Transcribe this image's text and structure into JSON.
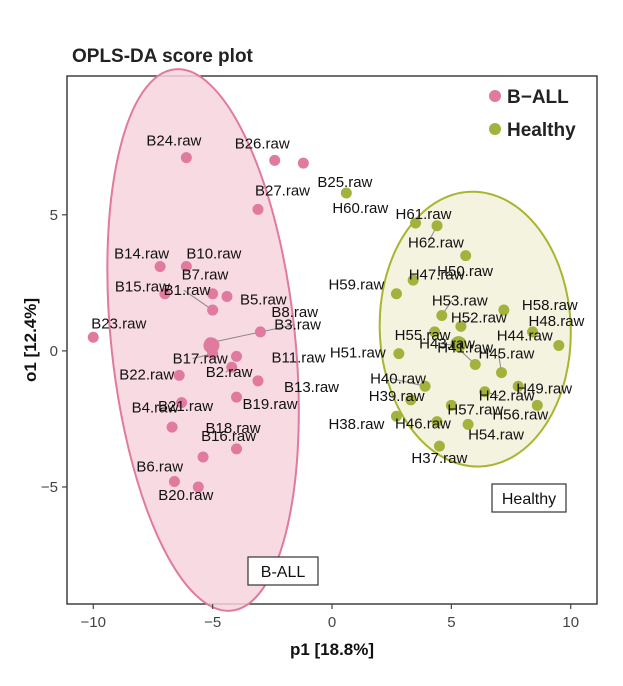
{
  "chart_data": {
    "type": "scatter",
    "title": "OPLS-DA score plot",
    "xlabel": "p1 [18.8%]",
    "ylabel": "o1 [12.4%]",
    "xlim": [
      -11.1,
      11.1
    ],
    "ylim": [
      -9.3,
      10.1
    ],
    "x_ticks": [
      -10,
      -5,
      0,
      5,
      10
    ],
    "y_ticks": [
      -5,
      0,
      5
    ],
    "x_tick_labels": [
      "−10",
      "−5",
      "0",
      "5",
      "10"
    ],
    "y_tick_labels": [
      "−5",
      "0",
      "5"
    ],
    "grid": false,
    "legend_position": "top-right",
    "series": [
      {
        "name": "B−ALL",
        "color": "#e07a9e",
        "ellipse_fill": "#f7d4de",
        "ellipse_stroke": "#e07a9e",
        "box_label": "B-ALL",
        "points": [
          {
            "label": "B24.raw",
            "x": -6.1,
            "y": 7.1
          },
          {
            "label": "B26.raw",
            "x": -2.4,
            "y": 7.0
          },
          {
            "label": "B25.raw",
            "x": -1.2,
            "y": 6.9
          },
          {
            "label": "B27.raw",
            "x": -3.1,
            "y": 5.2
          },
          {
            "label": "B14.raw",
            "x": -7.2,
            "y": 3.1
          },
          {
            "label": "B10.raw",
            "x": -6.1,
            "y": 3.1
          },
          {
            "label": "B7.raw",
            "x": -5.0,
            "y": 2.1
          },
          {
            "label": "B15.raw",
            "x": -7.0,
            "y": 2.1
          },
          {
            "label": "B5.raw",
            "x": -4.4,
            "y": 2.0
          },
          {
            "label": "B23.raw",
            "x": -10.0,
            "y": 0.5
          },
          {
            "label": "B1.raw",
            "x": -5.0,
            "y": 1.5
          },
          {
            "label": "B8.raw",
            "x": -3.0,
            "y": 0.7
          },
          {
            "label": "B3.raw",
            "x": -5.1,
            "y": 0.3
          },
          {
            "label": "B17.raw",
            "x": -5.0,
            "y": -0.1
          },
          {
            "label": "B11.raw",
            "x": -4.0,
            "y": -0.2
          },
          {
            "label": "B22.raw",
            "x": -6.4,
            "y": -0.9
          },
          {
            "label": "B2.raw",
            "x": -4.2,
            "y": -0.6
          },
          {
            "label": "B13.raw",
            "x": -3.1,
            "y": -1.1
          },
          {
            "label": "B4.raw",
            "x": -6.3,
            "y": -1.9
          },
          {
            "label": "B19.raw",
            "x": -4.0,
            "y": -1.7
          },
          {
            "label": "B18.raw",
            "x": -4.0,
            "y": -3.6
          },
          {
            "label": "B21.raw",
            "x": -6.7,
            "y": -2.8
          },
          {
            "label": "B6.raw",
            "x": -6.6,
            "y": -4.8
          },
          {
            "label": "B16.raw",
            "x": -5.4,
            "y": -3.9
          },
          {
            "label": "B20.raw",
            "x": -5.6,
            "y": -5.0
          }
        ]
      },
      {
        "name": "Healthy",
        "color": "#a3b23c",
        "ellipse_fill": "#f1f1da",
        "ellipse_stroke": "#a9b52e",
        "box_label": "Healthy",
        "points": [
          {
            "label": "H60.raw",
            "x": 0.6,
            "y": 5.8
          },
          {
            "label": "H61.raw",
            "x": 3.5,
            "y": 4.7
          },
          {
            "label": "H62.raw",
            "x": 4.4,
            "y": 4.6
          },
          {
            "label": "H47.raw",
            "x": 5.6,
            "y": 3.5
          },
          {
            "label": "H50.raw",
            "x": 3.4,
            "y": 2.6
          },
          {
            "label": "H59.raw",
            "x": 2.7,
            "y": 2.1
          },
          {
            "label": "H53.raw",
            "x": 4.6,
            "y": 1.3
          },
          {
            "label": "H58.raw",
            "x": 7.2,
            "y": 1.5
          },
          {
            "label": "H52.raw",
            "x": 5.4,
            "y": 0.9
          },
          {
            "label": "H55.raw",
            "x": 4.3,
            "y": 0.7
          },
          {
            "label": "H48.raw",
            "x": 8.4,
            "y": 0.7
          },
          {
            "label": "H51.raw",
            "x": 2.8,
            "y": -0.1
          },
          {
            "label": "H44.raw",
            "x": 9.5,
            "y": 0.2
          },
          {
            "label": "H43.raw",
            "x": 5.2,
            "y": 0.2
          },
          {
            "label": "H41.raw",
            "x": 6.0,
            "y": -0.5
          },
          {
            "label": "H45.raw",
            "x": 7.1,
            "y": -0.8
          },
          {
            "label": "H40.raw",
            "x": 3.9,
            "y": -1.3
          },
          {
            "label": "H49.raw",
            "x": 7.8,
            "y": -1.3
          },
          {
            "label": "H42.raw",
            "x": 6.4,
            "y": -1.5
          },
          {
            "label": "H39.raw",
            "x": 3.3,
            "y": -1.8
          },
          {
            "label": "H57.raw",
            "x": 5.0,
            "y": -2.0
          },
          {
            "label": "H56.raw",
            "x": 8.6,
            "y": -2.0
          },
          {
            "label": "H46.raw",
            "x": 4.4,
            "y": -2.6
          },
          {
            "label": "H38.raw",
            "x": 2.7,
            "y": -2.4
          },
          {
            "label": "H54.raw",
            "x": 5.7,
            "y": -2.7
          },
          {
            "label": "H37.raw",
            "x": 4.5,
            "y": -3.5
          }
        ]
      }
    ]
  }
}
